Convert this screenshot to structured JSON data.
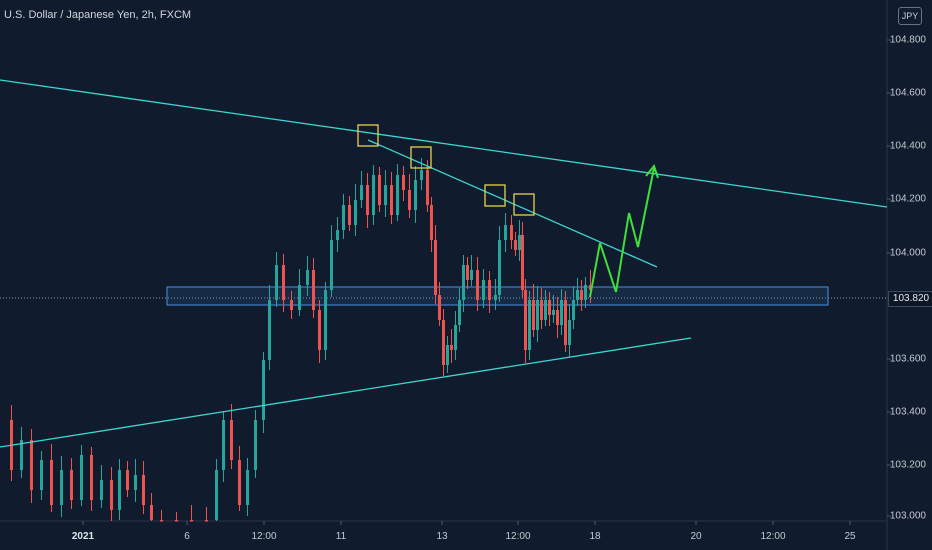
{
  "header": {
    "title": "U.S. Dollar / Japanese Yen, 2h, FXCM",
    "currency_badge": "JPY"
  },
  "price_scale": {
    "labels": [
      "104.800",
      "104.600",
      "104.400",
      "104.200",
      "104.000",
      "103.600",
      "103.400",
      "103.200",
      "103.000"
    ],
    "current_price": "103.820"
  },
  "time_scale": {
    "labels": [
      "2021",
      "6",
      "12:00",
      "11",
      "13",
      "12:00",
      "18",
      "20",
      "12:00",
      "25"
    ]
  },
  "colors": {
    "background": "#101c2e",
    "up_candle": "#26a69a",
    "down_candle": "#ef5350",
    "trendline": "#3dd6d0",
    "zone_border": "#4a90e2",
    "marker_box": "#e6d34a",
    "projection": "#3fe03a"
  }
}
